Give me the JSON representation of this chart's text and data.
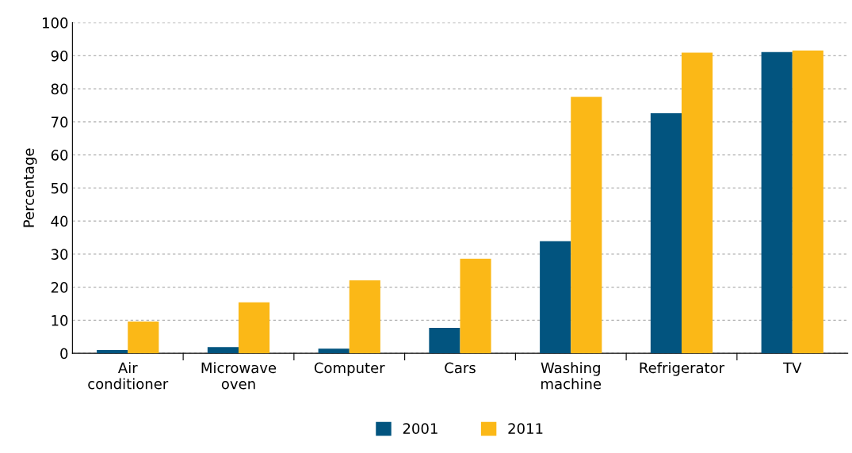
{
  "chart_data": {
    "type": "bar",
    "ylabel": "Percentage",
    "categories": [
      "Air\nconditioner",
      "Microwave\noven",
      "Computer",
      "Cars",
      "Washing\nmachine",
      "Refrigerator",
      "TV"
    ],
    "series": [
      {
        "name": "2001",
        "color": "#02547f",
        "values": [
          1.0,
          1.9,
          1.4,
          7.7,
          33.9,
          72.6,
          91.1
        ]
      },
      {
        "name": "2011",
        "color": "#fbb817",
        "values": [
          9.6,
          15.4,
          22.1,
          28.6,
          77.6,
          90.9,
          91.6
        ]
      }
    ],
    "ylim": [
      0,
      100
    ],
    "yticks": [
      0,
      10,
      20,
      30,
      40,
      50,
      60,
      70,
      80,
      90,
      100
    ],
    "grid": "y",
    "legend": "bottom"
  }
}
